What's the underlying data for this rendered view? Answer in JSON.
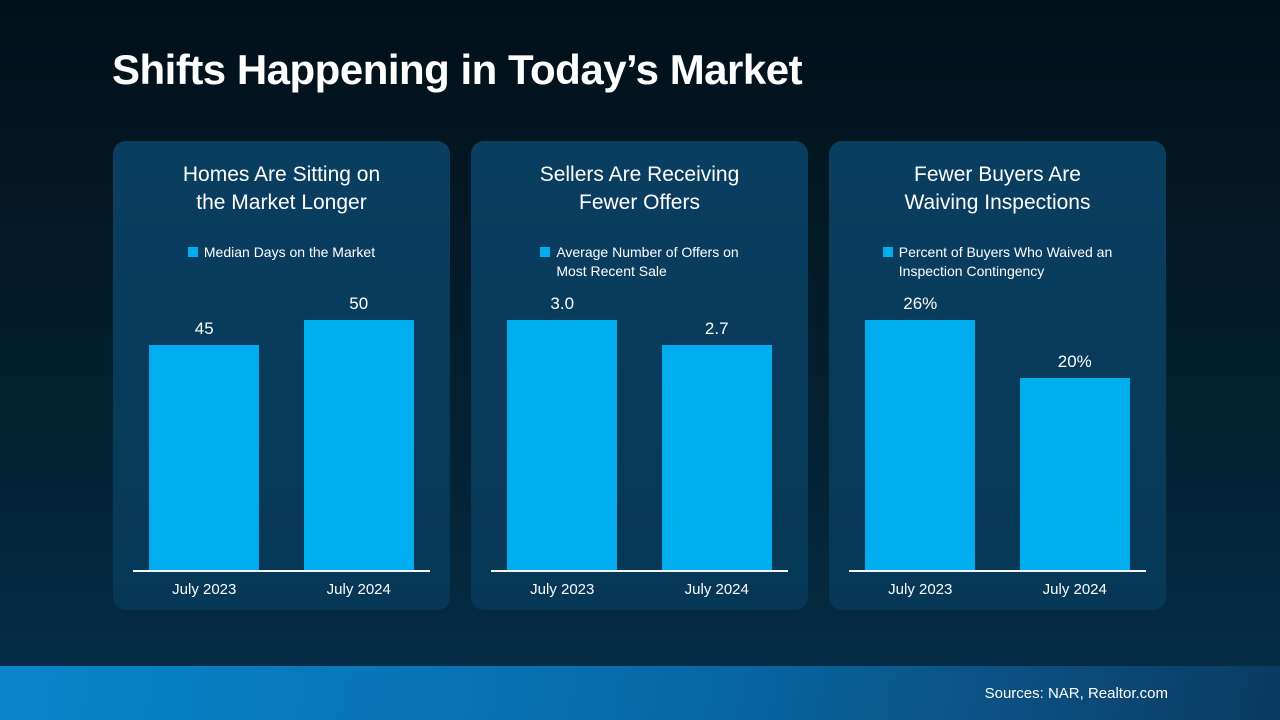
{
  "slide": {
    "title": "Shifts Happening in Today’s Market"
  },
  "footer": {
    "sources": "Sources: NAR, Realtor.com"
  },
  "colors": {
    "background_top": "#021019",
    "background_bottom": "#05304a",
    "card_background": "#083a5a",
    "bar_fill": "#00adef",
    "footer_left": "#0a85cc",
    "footer_right": "#0a3a60",
    "text": "#ffffff"
  },
  "chart_data": [
    {
      "type": "bar",
      "title": "Homes Are Sitting on\nthe Market Longer",
      "legend": "Median Days on the Market",
      "categories": [
        "July 2023",
        "July 2024"
      ],
      "values": [
        45,
        50
      ],
      "value_labels": [
        "45",
        "50"
      ],
      "xlabel": "",
      "ylabel": "Median Days on the Market",
      "ylim": [
        0,
        50
      ],
      "grid": false,
      "legend_position": "top-center"
    },
    {
      "type": "bar",
      "title": "Sellers Are Receiving\nFewer Offers",
      "legend": "Average Number of Offers on\nMost Recent Sale",
      "categories": [
        "July 2023",
        "July 2024"
      ],
      "values": [
        3.0,
        2.7
      ],
      "value_labels": [
        "3.0",
        "2.7"
      ],
      "xlabel": "",
      "ylabel": "Average Number of Offers on Most Recent Sale",
      "ylim": [
        0,
        3
      ],
      "grid": false,
      "legend_position": "top-center"
    },
    {
      "type": "bar",
      "title": "Fewer Buyers Are\nWaiving Inspections",
      "legend": "Percent of Buyers Who Waived an\nInspection Contingency",
      "categories": [
        "July 2023",
        "July 2024"
      ],
      "values": [
        26,
        20
      ],
      "value_labels": [
        "26%",
        "20%"
      ],
      "xlabel": "",
      "ylabel": "Percent of Buyers Who Waived an Inspection Contingency",
      "ylim": [
        0,
        26
      ],
      "grid": false,
      "legend_position": "top-center"
    }
  ]
}
